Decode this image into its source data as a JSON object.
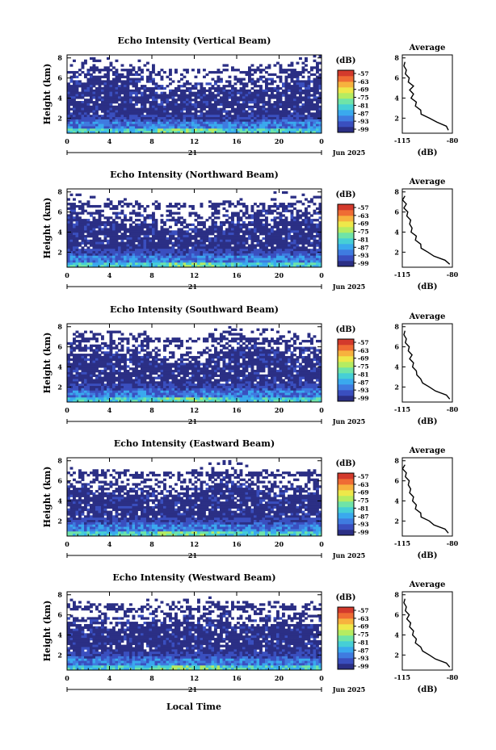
{
  "figure": {
    "time_axis_label": "Local Time",
    "date_label": "Jun 2025",
    "day_label": "21",
    "height_label": "Height (km)",
    "colorbar_unit": "(dB)",
    "colorbar_ticks": [
      "-57",
      "-63",
      "-69",
      "-75",
      "-81",
      "-87",
      "-93",
      "-99"
    ],
    "colorbar_colors": [
      "#2b2f85",
      "#3a4fbf",
      "#3f7be0",
      "#3aa9ee",
      "#46cfd6",
      "#6fe4a8",
      "#b5ec62",
      "#eee84a",
      "#f7b23e",
      "#ef6c34",
      "#d33a2c"
    ],
    "average_title": "Average",
    "average_xlabel": "(dB)"
  },
  "chart_data": [
    {
      "type": "heatmap",
      "title": "Echo Intensity (Vertical Beam)",
      "xlabel": "Local Time",
      "ylabel": "Height (km)",
      "xlim": [
        0,
        24
      ],
      "ylim": [
        0.5,
        8.3
      ],
      "xticks": [
        "0",
        "4",
        "8",
        "12",
        "16",
        "20",
        "0"
      ],
      "yticks": [
        "2",
        "4",
        "6",
        "8"
      ],
      "zlim": [
        -99,
        -57
      ],
      "zunit": "dB",
      "description_values": {
        "surface_layer_dB": -85,
        "upper_layer_dB": -99
      },
      "layer_top_km": 6.2,
      "average_profile": {
        "title": "Average",
        "xlabel": "(dB)",
        "xlim": [
          -115,
          -80
        ],
        "xticks": [
          "-115",
          "-80"
        ],
        "yticks": [
          "2",
          "4",
          "6",
          "8"
        ],
        "heights": [
          0.8,
          1.2,
          1.6,
          2.0,
          2.4,
          2.8,
          3.2,
          3.6,
          4.0,
          4.4,
          4.8,
          5.2,
          5.6,
          6.0,
          6.4,
          6.8,
          7.2,
          7.6
        ],
        "values": [
          -82,
          -85,
          -90,
          -97,
          -101,
          -103,
          -105,
          -106,
          -108,
          -108,
          -109,
          -108,
          -110,
          -111,
          -112,
          -113,
          -113,
          -114
        ]
      }
    },
    {
      "type": "heatmap",
      "title": "Echo Intensity (Northward Beam)",
      "xlabel": "Local Time",
      "ylabel": "Height (km)",
      "xlim": [
        0,
        24
      ],
      "ylim": [
        0.5,
        8.3
      ],
      "xticks": [
        "0",
        "4",
        "8",
        "12",
        "16",
        "20",
        "0"
      ],
      "yticks": [
        "2",
        "4",
        "6",
        "8"
      ],
      "zlim": [
        -99,
        -57
      ],
      "zunit": "dB",
      "layer_top_km": 6.0,
      "average_profile": {
        "title": "Average",
        "xlabel": "(dB)",
        "xlim": [
          -115,
          -80
        ],
        "xticks": [
          "-115",
          "-80"
        ],
        "yticks": [
          "2",
          "4",
          "6",
          "8"
        ],
        "heights": [
          0.8,
          1.2,
          1.6,
          2.0,
          2.4,
          2.8,
          3.2,
          3.6,
          4.0,
          4.4,
          4.8,
          5.2,
          5.6,
          6.0,
          6.4,
          6.8,
          7.2,
          7.6
        ],
        "values": [
          -81,
          -86,
          -92,
          -98,
          -101,
          -103,
          -105,
          -106,
          -108,
          -109,
          -109,
          -110,
          -111,
          -112,
          -113,
          -113,
          -114,
          -114
        ]
      }
    },
    {
      "type": "heatmap",
      "title": "Echo Intensity (Southward Beam)",
      "xlabel": "Local Time",
      "ylabel": "Height (km)",
      "xlim": [
        0,
        24
      ],
      "ylim": [
        0.5,
        8.3
      ],
      "xticks": [
        "0",
        "4",
        "8",
        "12",
        "16",
        "20",
        "0"
      ],
      "yticks": [
        "2",
        "4",
        "6",
        "8"
      ],
      "zlim": [
        -99,
        -57
      ],
      "zunit": "dB",
      "layer_top_km": 6.3,
      "average_profile": {
        "title": "Average",
        "xlabel": "(dB)",
        "xlim": [
          -115,
          -80
        ],
        "xticks": [
          "-115",
          "-80"
        ],
        "yticks": [
          "2",
          "4",
          "6",
          "8"
        ],
        "heights": [
          0.8,
          1.2,
          1.6,
          2.0,
          2.4,
          2.8,
          3.2,
          3.6,
          4.0,
          4.4,
          4.8,
          5.2,
          5.6,
          6.0,
          6.4,
          6.8,
          7.2,
          7.6
        ],
        "values": [
          -81,
          -85,
          -91,
          -97,
          -100,
          -103,
          -104,
          -106,
          -107,
          -108,
          -109,
          -109,
          -110,
          -111,
          -112,
          -113,
          -113,
          -114
        ]
      }
    },
    {
      "type": "heatmap",
      "title": "Echo Intensity (Eastward Beam)",
      "xlabel": "Local Time",
      "ylabel": "Height (km)",
      "xlim": [
        0,
        24
      ],
      "ylim": [
        0.5,
        8.3
      ],
      "xticks": [
        "0",
        "4",
        "8",
        "12",
        "16",
        "20",
        "0"
      ],
      "yticks": [
        "2",
        "4",
        "6",
        "8"
      ],
      "zlim": [
        -99,
        -57
      ],
      "zunit": "dB",
      "layer_top_km": 6.0,
      "average_profile": {
        "title": "Average",
        "xlabel": "(dB)",
        "xlim": [
          -115,
          -80
        ],
        "xticks": [
          "-115",
          "-80"
        ],
        "yticks": [
          "2",
          "4",
          "6",
          "8"
        ],
        "heights": [
          0.8,
          1.2,
          1.6,
          2.0,
          2.4,
          2.8,
          3.2,
          3.6,
          4.0,
          4.4,
          4.8,
          5.2,
          5.6,
          6.0,
          6.4,
          6.8,
          7.2,
          7.6
        ],
        "values": [
          -82,
          -86,
          -92,
          -97,
          -101,
          -103,
          -105,
          -106,
          -107,
          -108,
          -109,
          -110,
          -110,
          -111,
          -112,
          -113,
          -114,
          -114
        ]
      }
    },
    {
      "type": "heatmap",
      "title": "Echo Intensity (Westward Beam)",
      "xlabel": "Local Time",
      "ylabel": "Height (km)",
      "xlim": [
        0,
        24
      ],
      "ylim": [
        0.5,
        8.3
      ],
      "xticks": [
        "0",
        "4",
        "8",
        "12",
        "16",
        "20",
        "0"
      ],
      "yticks": [
        "2",
        "4",
        "6",
        "8"
      ],
      "zlim": [
        -99,
        -57
      ],
      "zunit": "dB",
      "layer_top_km": 6.2,
      "average_profile": {
        "title": "Average",
        "xlabel": "(dB)",
        "xlim": [
          -115,
          -80
        ],
        "xticks": [
          "-115",
          "-80"
        ],
        "yticks": [
          "2",
          "4",
          "6",
          "8"
        ],
        "heights": [
          0.8,
          1.2,
          1.6,
          2.0,
          2.4,
          2.8,
          3.2,
          3.6,
          4.0,
          4.4,
          4.8,
          5.2,
          5.6,
          6.0,
          6.4,
          6.8,
          7.2,
          7.6
        ],
        "values": [
          -81,
          -85,
          -91,
          -97,
          -100,
          -103,
          -105,
          -106,
          -107,
          -108,
          -109,
          -110,
          -111,
          -111,
          -112,
          -113,
          -113,
          -114
        ]
      }
    }
  ]
}
